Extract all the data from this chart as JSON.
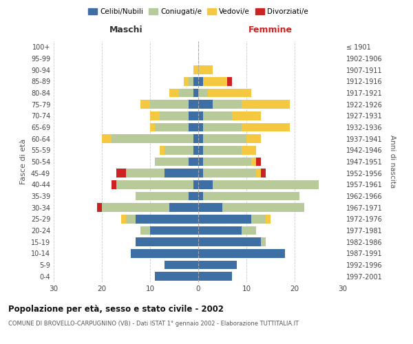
{
  "age_groups": [
    "0-4",
    "5-9",
    "10-14",
    "15-19",
    "20-24",
    "25-29",
    "30-34",
    "35-39",
    "40-44",
    "45-49",
    "50-54",
    "55-59",
    "60-64",
    "65-69",
    "70-74",
    "75-79",
    "80-84",
    "85-89",
    "90-94",
    "95-99",
    "100+"
  ],
  "birth_years": [
    "1997-2001",
    "1992-1996",
    "1987-1991",
    "1982-1986",
    "1977-1981",
    "1972-1976",
    "1967-1971",
    "1962-1966",
    "1957-1961",
    "1952-1956",
    "1947-1951",
    "1942-1946",
    "1937-1941",
    "1932-1936",
    "1927-1931",
    "1922-1926",
    "1917-1921",
    "1912-1916",
    "1907-1911",
    "1902-1906",
    "≤ 1901"
  ],
  "maschi": {
    "celibi": [
      9,
      7,
      14,
      13,
      10,
      13,
      6,
      2,
      1,
      7,
      2,
      1,
      1,
      2,
      2,
      2,
      1,
      1,
      0,
      0,
      0
    ],
    "coniugati": [
      0,
      0,
      0,
      0,
      2,
      2,
      14,
      11,
      16,
      8,
      7,
      6,
      17,
      7,
      6,
      8,
      3,
      1,
      0,
      0,
      0
    ],
    "vedovi": [
      0,
      0,
      0,
      0,
      0,
      1,
      0,
      0,
      0,
      0,
      0,
      1,
      2,
      1,
      2,
      2,
      2,
      1,
      1,
      0,
      0
    ],
    "divorziati": [
      0,
      0,
      0,
      0,
      0,
      0,
      1,
      0,
      1,
      2,
      0,
      0,
      0,
      0,
      0,
      0,
      0,
      0,
      0,
      0,
      0
    ]
  },
  "femmine": {
    "nubili": [
      7,
      8,
      18,
      13,
      9,
      11,
      5,
      1,
      3,
      1,
      1,
      1,
      1,
      1,
      1,
      3,
      0,
      1,
      0,
      0,
      0
    ],
    "coniugate": [
      0,
      0,
      0,
      1,
      3,
      3,
      17,
      20,
      22,
      11,
      10,
      8,
      9,
      8,
      6,
      6,
      2,
      0,
      0,
      0,
      0
    ],
    "vedove": [
      0,
      0,
      0,
      0,
      0,
      1,
      0,
      0,
      0,
      1,
      1,
      3,
      3,
      10,
      6,
      10,
      9,
      5,
      3,
      0,
      0
    ],
    "divorziate": [
      0,
      0,
      0,
      0,
      0,
      0,
      0,
      0,
      0,
      1,
      1,
      0,
      0,
      0,
      0,
      0,
      0,
      1,
      0,
      0,
      0
    ]
  },
  "colors": {
    "celibi_nubili": "#3d6fa5",
    "coniugati": "#b8ca9a",
    "vedovi": "#f5c842",
    "divorziati": "#cc2222"
  },
  "title": "Popolazione per età, sesso e stato civile - 2002",
  "subtitle": "COMUNE DI BROVELLO-CARPUGNINO (VB) - Dati ISTAT 1° gennaio 2002 - Elaborazione TUTTITALIA.IT",
  "xlabel_left": "Maschi",
  "xlabel_right": "Femmine",
  "ylabel_left": "Fasce di età",
  "ylabel_right": "Anni di nascita",
  "xlim": 30,
  "background_color": "#ffffff",
  "grid_color": "#cccccc"
}
